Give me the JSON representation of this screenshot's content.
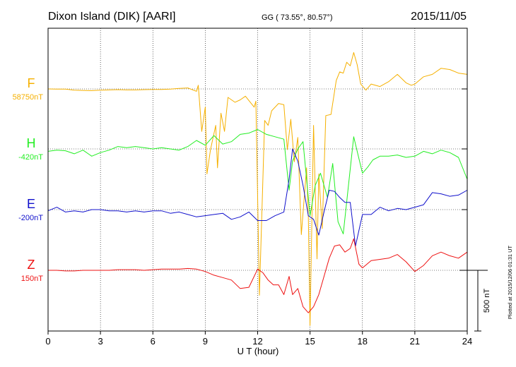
{
  "header": {
    "station": "Dixon Island (DIK)  [AARI]",
    "coords": "GG ( 73.55°,  80.57°)",
    "date": "2015/11/05"
  },
  "side_note": "Plotted at 2015/12/06 01:31  UT",
  "colors": {
    "F": "#f5b000",
    "H": "#22ee22",
    "E": "#1010cc",
    "Z": "#ee1111",
    "grid": "#000000"
  },
  "chart_data": {
    "type": "line",
    "xlabel": "U T (hour)",
    "x_ticks": [
      "0",
      "3",
      "6",
      "9",
      "12",
      "15",
      "18",
      "21",
      "24"
    ],
    "xlim": [
      0,
      24
    ],
    "scale_bar_label": "500 nT",
    "scale_bar_nT": 500,
    "nT_per_grid_row": 500,
    "series": [
      {
        "name": "F",
        "baseline": "58750nT",
        "color_key": "F",
        "x": [
          0,
          0.5,
          1,
          1.5,
          2,
          2.5,
          3,
          3.5,
          4,
          4.5,
          5,
          5.5,
          6,
          6.5,
          7,
          7.5,
          8,
          8.5,
          8.6,
          8.8,
          9.0,
          9.1,
          9.3,
          9.6,
          9.7,
          9.9,
          10.1,
          10.3,
          10.7,
          11.0,
          11.3,
          11.8,
          11.9,
          12.1,
          12.4,
          12.6,
          12.8,
          13.2,
          13.5,
          13.7,
          13.9,
          14.1,
          14.3,
          14.5,
          14.8,
          14.9,
          15.0,
          15.2,
          15.4,
          15.5,
          15.7,
          15.9,
          16.2,
          16.5,
          16.7,
          16.9,
          17.1,
          17.3,
          17.5,
          17.7,
          17.9,
          18.2,
          18.5,
          19,
          19.5,
          20,
          20.5,
          20.8,
          21,
          21.5,
          22,
          22.5,
          23,
          23.5,
          24
        ],
        "y": [
          0,
          -2,
          -2,
          -10,
          -12,
          -14,
          -10,
          -8,
          -6,
          -8,
          -8,
          -6,
          -4,
          -4,
          -2,
          4,
          8,
          -20,
          30,
          -350,
          -150,
          -700,
          -500,
          -300,
          -650,
          -200,
          -350,
          -70,
          -110,
          -90,
          -60,
          -150,
          -100,
          -1700,
          -260,
          -300,
          -180,
          -120,
          -130,
          -500,
          -250,
          -600,
          -400,
          -1200,
          -650,
          -1050,
          -1950,
          -300,
          -1400,
          -700,
          -1150,
          -220,
          -210,
          70,
          140,
          130,
          220,
          190,
          300,
          200,
          40,
          -10,
          40,
          20,
          60,
          120,
          50,
          30,
          40,
          100,
          120,
          170,
          160,
          130,
          120
        ]
      },
      {
        "name": "H",
        "baseline": "-420nT",
        "color_key": "H",
        "x": [
          0,
          0.5,
          1,
          1.5,
          2,
          2.5,
          3,
          3.5,
          4,
          4.5,
          5,
          5.5,
          6,
          6.5,
          7,
          7.5,
          8,
          8.5,
          9,
          9.5,
          10,
          10.5,
          11,
          11.5,
          12,
          12.5,
          13,
          13.5,
          13.8,
          14,
          14.3,
          14.6,
          15,
          15.3,
          15.6,
          16,
          16.3,
          16.6,
          16.9,
          17.2,
          17.5,
          17.8,
          18,
          18.3,
          18.6,
          19,
          19.5,
          20,
          20.5,
          21,
          21.5,
          22,
          22.5,
          23,
          23.5,
          24
        ],
        "y": [
          -20,
          -10,
          -15,
          -40,
          -10,
          -60,
          -30,
          -10,
          20,
          10,
          20,
          10,
          0,
          10,
          0,
          -10,
          20,
          70,
          30,
          110,
          40,
          60,
          120,
          130,
          160,
          120,
          100,
          80,
          -340,
          -100,
          0,
          60,
          -550,
          -300,
          -200,
          -400,
          -120,
          -600,
          -700,
          -300,
          100,
          -80,
          -200,
          -150,
          -90,
          -60,
          -60,
          -50,
          -70,
          -60,
          -20,
          -40,
          -10,
          -30,
          -70,
          -250
        ]
      },
      {
        "name": "E",
        "baseline": "-200nT",
        "color_key": "E",
        "x": [
          0,
          0.5,
          1,
          1.5,
          2,
          2.5,
          3,
          3.5,
          4,
          4.5,
          5,
          5.5,
          6,
          6.5,
          7,
          7.5,
          8,
          8.5,
          9,
          9.5,
          10,
          10.5,
          11,
          11.5,
          12,
          12.5,
          13,
          13.5,
          13.8,
          14,
          14.3,
          14.6,
          14.9,
          15.2,
          15.5,
          15.8,
          16.1,
          16.4,
          16.7,
          17,
          17.3,
          17.6,
          18,
          18.5,
          19,
          19.5,
          20,
          20.5,
          21,
          21.5,
          22,
          22.5,
          23,
          23.5,
          24
        ],
        "y": [
          -10,
          20,
          -20,
          -10,
          -20,
          0,
          0,
          -10,
          -10,
          -20,
          -10,
          -20,
          -10,
          -10,
          -30,
          -20,
          -40,
          -60,
          -50,
          -40,
          -30,
          -80,
          -60,
          -20,
          -90,
          -90,
          -50,
          -20,
          250,
          500,
          400,
          200,
          -50,
          -80,
          -210,
          -20,
          160,
          150,
          100,
          60,
          60,
          -300,
          -40,
          -40,
          20,
          -10,
          10,
          0,
          20,
          40,
          140,
          130,
          110,
          120,
          160
        ]
      },
      {
        "name": "Z",
        "baseline": "150nT",
        "color_key": "Z",
        "x": [
          0,
          0.5,
          1,
          1.5,
          2,
          2.5,
          3,
          3.5,
          4,
          4.5,
          5,
          5.5,
          6,
          6.5,
          7,
          7.5,
          8,
          8.5,
          9,
          9.5,
          10,
          10.5,
          11,
          11.5,
          12,
          12.3,
          12.6,
          12.9,
          13.2,
          13.5,
          13.8,
          14,
          14.3,
          14.6,
          14.9,
          15.2,
          15.5,
          15.8,
          16.1,
          16.4,
          16.7,
          17,
          17.3,
          17.5,
          17.8,
          18,
          18.5,
          19,
          19.5,
          20,
          20.5,
          21,
          21.5,
          22,
          22.5,
          23,
          23.5,
          24
        ],
        "y": [
          0,
          0,
          -5,
          -5,
          0,
          0,
          0,
          0,
          5,
          5,
          5,
          0,
          5,
          10,
          10,
          10,
          15,
          10,
          -10,
          -40,
          -60,
          -80,
          -150,
          -140,
          10,
          -20,
          -80,
          -120,
          -120,
          -200,
          -50,
          -200,
          -150,
          -300,
          -350,
          -300,
          -200,
          -50,
          100,
          200,
          210,
          150,
          180,
          260,
          50,
          20,
          80,
          90,
          100,
          130,
          70,
          -10,
          40,
          120,
          150,
          120,
          100,
          150
        ]
      }
    ]
  }
}
